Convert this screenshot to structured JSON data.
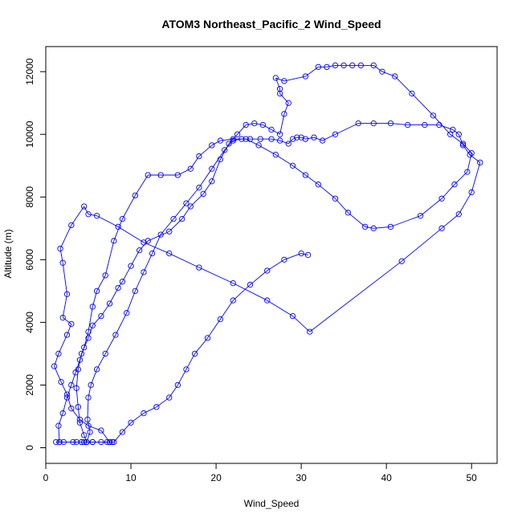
{
  "chart_data": {
    "type": "line",
    "title": "ATOM3 Northeast_Pacific_2 Wind_Speed",
    "xlabel": "Wind_Speed",
    "ylabel": "Altitude (m)",
    "xlim": [
      0,
      53
    ],
    "ylim": [
      -500,
      12800
    ],
    "xticks": [
      0,
      10,
      20,
      30,
      40,
      50
    ],
    "yticks": [
      0,
      2000,
      4000,
      6000,
      8000,
      10000,
      12000
    ],
    "grid": false,
    "colors": {
      "series": "#0000ff",
      "axes": "#000000"
    },
    "series": [
      {
        "marker": "open-circle",
        "points": [
          [
            1.2,
            180
          ],
          [
            1.6,
            180
          ],
          [
            2.1,
            180
          ],
          [
            3.6,
            180
          ],
          [
            4.2,
            180
          ],
          [
            4.5,
            180
          ],
          [
            4.8,
            180
          ],
          [
            5.2,
            500
          ],
          [
            4.9,
            900
          ],
          [
            5.0,
            1600
          ],
          [
            5.3,
            2000
          ],
          [
            6.0,
            2500
          ],
          [
            7.0,
            3000
          ],
          [
            8.2,
            3600
          ],
          [
            9.5,
            4300
          ],
          [
            10.5,
            5000
          ],
          [
            11.5,
            5600
          ],
          [
            12.5,
            6200
          ],
          [
            13.5,
            6800
          ],
          [
            15.0,
            7300
          ],
          [
            16.5,
            7800
          ],
          [
            18.0,
            8300
          ],
          [
            19.5,
            8900
          ],
          [
            21.0,
            9500
          ],
          [
            22.0,
            9800
          ],
          [
            23.0,
            9850
          ],
          [
            24.0,
            9850
          ],
          [
            25.2,
            9850
          ],
          [
            26.5,
            9850
          ],
          [
            27.5,
            9800
          ],
          [
            28.5,
            9700
          ],
          [
            29.0,
            9850
          ],
          [
            29.5,
            9900
          ],
          [
            30.0,
            9900
          ],
          [
            30.5,
            9850
          ],
          [
            31.5,
            9900
          ],
          [
            32.5,
            9800
          ],
          [
            34.0,
            10000
          ],
          [
            36.7,
            10350
          ],
          [
            38.5,
            10350
          ],
          [
            40.5,
            10350
          ],
          [
            42.5,
            10300
          ],
          [
            44.5,
            10300
          ],
          [
            46.2,
            10300
          ],
          [
            47.8,
            10150
          ],
          [
            48.5,
            10000
          ],
          [
            49.0,
            9650
          ],
          [
            49.8,
            9350
          ],
          [
            51.0,
            9100
          ],
          [
            50.0,
            8150
          ],
          [
            48.5,
            7450
          ],
          [
            46.5,
            7000
          ],
          [
            41.8,
            5950
          ],
          [
            31.0,
            3700
          ],
          [
            29.0,
            4200
          ],
          [
            26.0,
            4700
          ],
          [
            22.0,
            5250
          ],
          [
            18.0,
            5750
          ],
          [
            14.5,
            6200
          ],
          [
            11.5,
            6550
          ],
          [
            8.5,
            7050
          ],
          [
            6.0,
            7400
          ],
          [
            5.0,
            7450
          ],
          [
            4.5,
            7700
          ],
          [
            3.0,
            7100
          ],
          [
            1.7,
            6350
          ],
          [
            2.0,
            5900
          ],
          [
            2.5,
            4900
          ],
          [
            2.0,
            4150
          ],
          [
            3.0,
            3950
          ],
          [
            2.5,
            3600
          ],
          [
            1.5,
            3000
          ],
          [
            1.0,
            2600
          ],
          [
            1.8,
            2100
          ],
          [
            2.5,
            1700
          ],
          [
            3.0,
            1250
          ],
          [
            4.0,
            900
          ],
          [
            5.0,
            700
          ],
          [
            6.5,
            550
          ],
          [
            7.5,
            180
          ],
          [
            7.8,
            180
          ],
          [
            7.5,
            180
          ],
          [
            6.5,
            180
          ],
          [
            5.5,
            180
          ],
          [
            4.8,
            180
          ],
          [
            4.5,
            400
          ],
          [
            4.0,
            800
          ],
          [
            3.8,
            1300
          ],
          [
            3.6,
            1900
          ],
          [
            3.8,
            2500
          ],
          [
            4.2,
            3000
          ],
          [
            5.0,
            3500
          ],
          [
            5.5,
            3900
          ],
          [
            6.5,
            4200
          ],
          [
            7.5,
            4600
          ],
          [
            8.5,
            5100
          ],
          [
            9.0,
            5300
          ],
          [
            10.0,
            5800
          ],
          [
            11.0,
            6300
          ],
          [
            12.0,
            6600
          ],
          [
            14.5,
            6900
          ],
          [
            16.0,
            7300
          ],
          [
            17.0,
            7700
          ],
          [
            18.5,
            8100
          ],
          [
            19.5,
            8500
          ],
          [
            20.5,
            9200
          ],
          [
            21.5,
            9700
          ],
          [
            22.5,
            10000
          ],
          [
            23.5,
            10300
          ],
          [
            24.5,
            10350
          ],
          [
            25.5,
            10300
          ],
          [
            26.5,
            10150
          ],
          [
            27.5,
            10000
          ],
          [
            28.0,
            10650
          ],
          [
            28.5,
            11000
          ],
          [
            27.5,
            11300
          ],
          [
            27.5,
            11450
          ],
          [
            27.0,
            11800
          ],
          [
            28.0,
            11700
          ],
          [
            30.5,
            11850
          ],
          [
            32.0,
            12150
          ],
          [
            33.0,
            12150
          ],
          [
            34.0,
            12200
          ],
          [
            35.0,
            12200
          ],
          [
            36.0,
            12200
          ],
          [
            37.0,
            12200
          ],
          [
            38.5,
            12200
          ],
          [
            39.5,
            12000
          ],
          [
            41.0,
            11850
          ],
          [
            43.0,
            11300
          ],
          [
            45.5,
            10600
          ],
          [
            47.5,
            10000
          ],
          [
            49.0,
            9700
          ],
          [
            50.0,
            9400
          ],
          [
            49.5,
            8800
          ],
          [
            48.0,
            8400
          ],
          [
            46.5,
            7950
          ],
          [
            44.0,
            7400
          ],
          [
            40.5,
            7050
          ],
          [
            38.5,
            7000
          ],
          [
            37.5,
            7050
          ],
          [
            35.5,
            7500
          ],
          [
            34.0,
            7950
          ],
          [
            32.0,
            8400
          ],
          [
            30.5,
            8700
          ],
          [
            29.0,
            9000
          ],
          [
            27.0,
            9350
          ],
          [
            25.0,
            9650
          ],
          [
            23.5,
            9850
          ],
          [
            22.0,
            9850
          ],
          [
            20.5,
            9800
          ],
          [
            19.5,
            9650
          ],
          [
            18.0,
            9300
          ],
          [
            17.0,
            8900
          ],
          [
            15.5,
            8700
          ],
          [
            13.5,
            8700
          ],
          [
            12.0,
            8700
          ],
          [
            10.5,
            8050
          ],
          [
            9.0,
            7300
          ],
          [
            8.0,
            6600
          ],
          [
            7.0,
            5500
          ],
          [
            6.0,
            5000
          ],
          [
            5.5,
            4500
          ],
          [
            5.0,
            3700
          ],
          [
            4.5,
            3200
          ],
          [
            4.0,
            2800
          ],
          [
            3.5,
            2400
          ],
          [
            3.0,
            2000
          ],
          [
            2.5,
            1600
          ],
          [
            2.0,
            1100
          ],
          [
            1.5,
            700
          ],
          [
            1.6,
            180
          ],
          [
            3.2,
            180
          ],
          [
            4.2,
            180
          ],
          [
            4.8,
            180
          ],
          [
            5.5,
            180
          ],
          [
            7.2,
            180
          ],
          [
            8.0,
            180
          ],
          [
            9.0,
            500
          ],
          [
            10.0,
            800
          ],
          [
            11.5,
            1100
          ],
          [
            13.0,
            1300
          ],
          [
            14.5,
            1600
          ],
          [
            15.5,
            2000
          ],
          [
            16.5,
            2500
          ],
          [
            17.5,
            3000
          ],
          [
            19.0,
            3500
          ],
          [
            20.5,
            4100
          ],
          [
            22.0,
            4700
          ],
          [
            24.0,
            5200
          ],
          [
            26.0,
            5650
          ],
          [
            28.0,
            6000
          ],
          [
            30.0,
            6200
          ],
          [
            30.8,
            6150
          ]
        ]
      }
    ]
  }
}
